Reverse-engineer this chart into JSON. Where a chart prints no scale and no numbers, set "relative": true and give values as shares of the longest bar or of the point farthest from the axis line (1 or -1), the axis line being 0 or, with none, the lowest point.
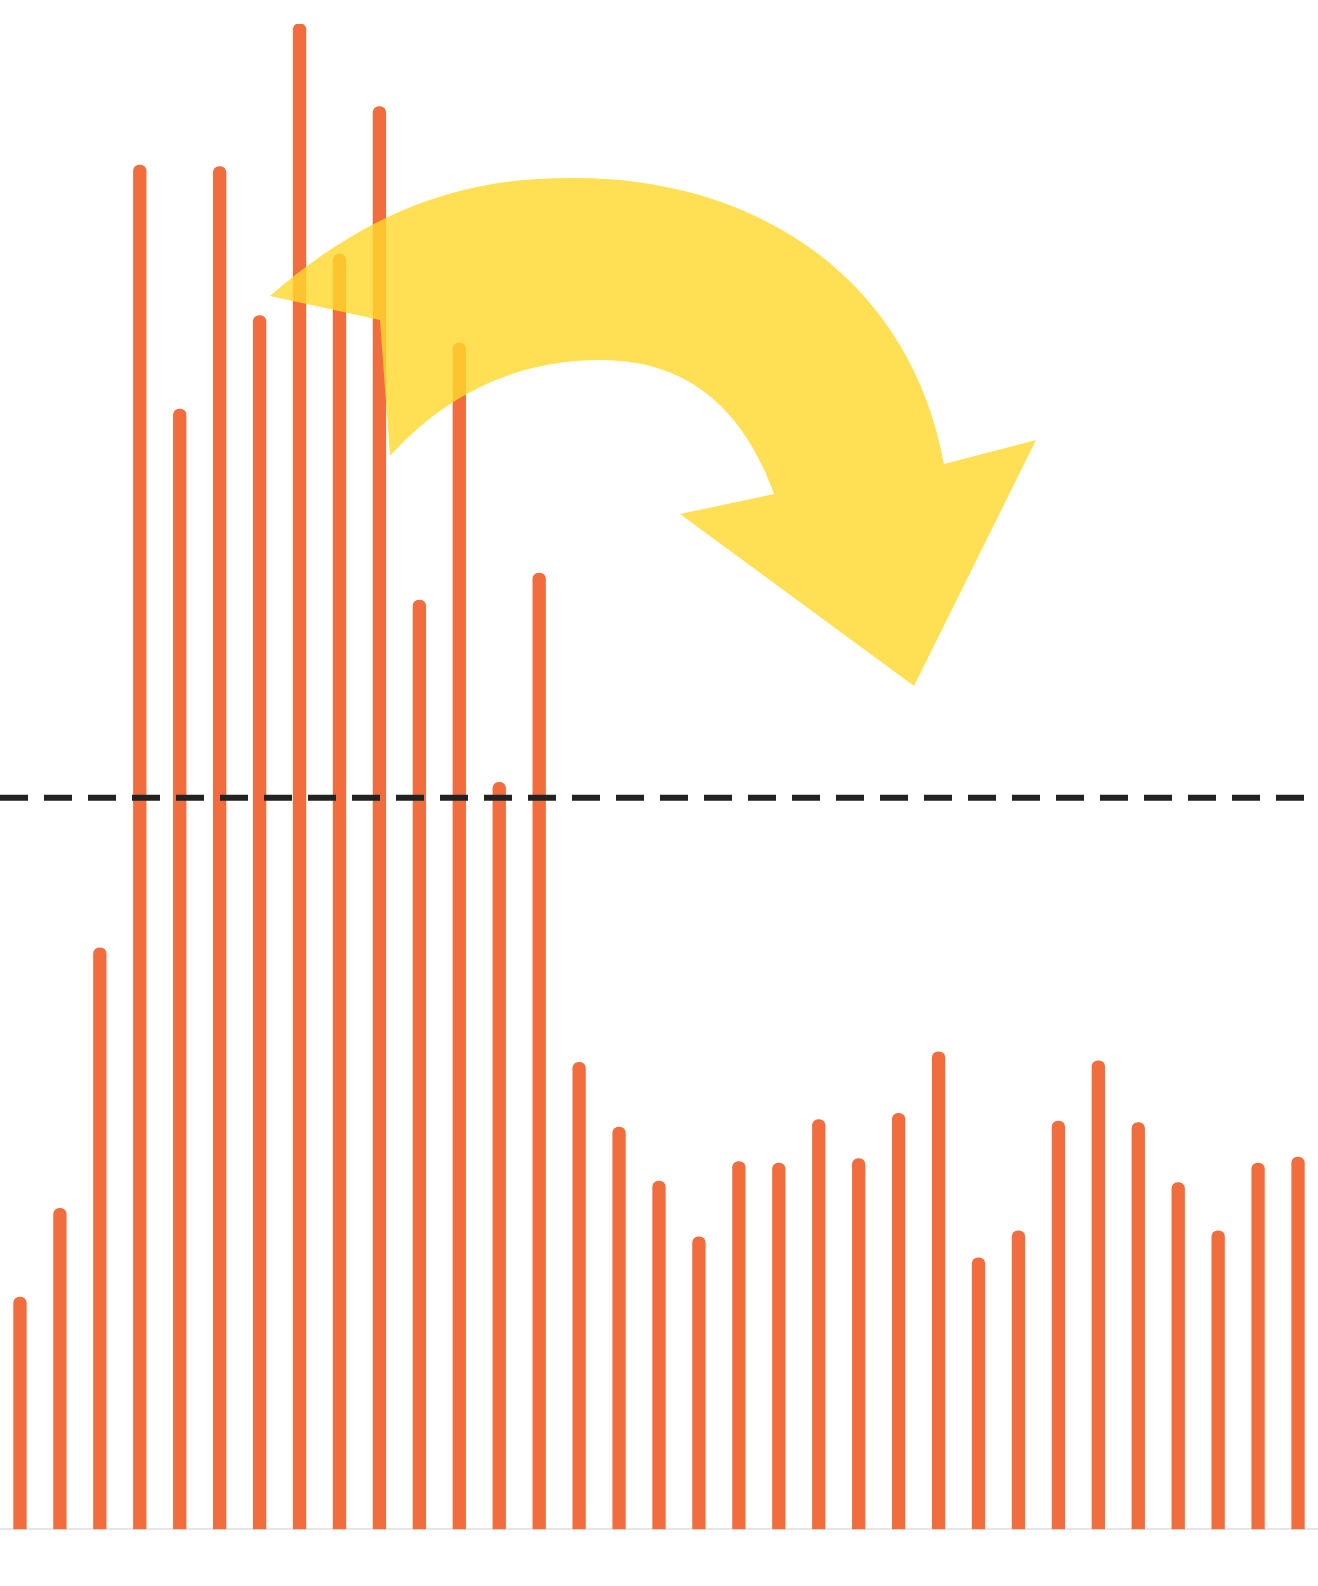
{
  "chart_data": {
    "type": "bar",
    "relative": true,
    "categories": [
      null,
      null,
      null,
      null,
      null,
      null,
      null,
      null,
      null,
      null,
      null,
      null,
      null,
      null,
      null,
      null,
      null,
      null,
      null,
      null,
      null,
      null,
      null,
      null,
      null,
      null,
      null,
      null,
      null,
      null,
      null,
      null,
      null
    ],
    "values": [
      0.154,
      0.213,
      0.386,
      0.906,
      0.744,
      0.905,
      0.806,
      1,
      0.847,
      0.945,
      0.617,
      0.788,
      0.496,
      0.635,
      0.31,
      0.267,
      0.231,
      0.194,
      0.244,
      0.243,
      0.272,
      0.246,
      0.276,
      0.317,
      0.18,
      0.198,
      0.271,
      0.311,
      0.27,
      0.23,
      0.198,
      0.243,
      0.247
    ],
    "color": "#f26d3d",
    "ref_lines": [
      {
        "axis": "y",
        "value": 0.486,
        "color": "#222222",
        "line_style": "dashed"
      }
    ],
    "grid": false,
    "legend": false
  }
}
